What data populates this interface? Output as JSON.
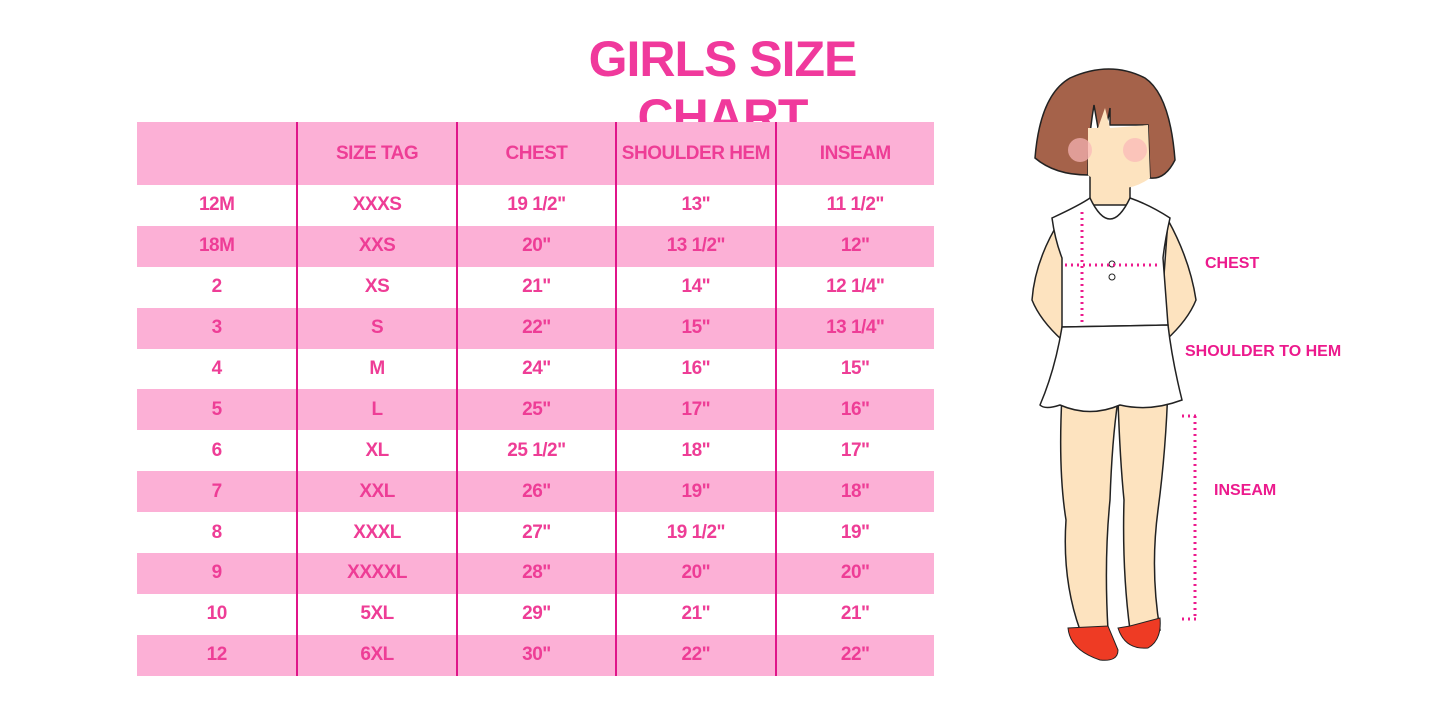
{
  "title": "GIRLS SIZE CHART",
  "table": {
    "headers": [
      "",
      "SIZE TAG",
      "CHEST",
      "SHOULDER HEM",
      "INSEAM"
    ],
    "rows": [
      [
        "12M",
        "XXXS",
        "19 1/2\"",
        "13\"",
        "11 1/2\""
      ],
      [
        "18M",
        "XXS",
        "20\"",
        "13 1/2\"",
        "12\""
      ],
      [
        "2",
        "XS",
        "21\"",
        "14\"",
        "12 1/4\""
      ],
      [
        "3",
        "S",
        "22\"",
        "15\"",
        "13 1/4\""
      ],
      [
        "4",
        "M",
        "24\"",
        "16\"",
        "15\""
      ],
      [
        "5",
        "L",
        "25\"",
        "17\"",
        "16\""
      ],
      [
        "6",
        "XL",
        "25 1/2\"",
        "18\"",
        "17\""
      ],
      [
        "7",
        "XXL",
        "26\"",
        "19\"",
        "18\""
      ],
      [
        "8",
        "XXXL",
        "27\"",
        "19 1/2\"",
        "19\""
      ],
      [
        "9",
        "XXXXL",
        "28\"",
        "20\"",
        "20\""
      ],
      [
        "10",
        "5XL",
        "29\"",
        "21\"",
        "21\""
      ],
      [
        "12",
        "6XL",
        "30\"",
        "22\"",
        "22\""
      ]
    ]
  },
  "diagram": {
    "labels": {
      "chest": "CHEST",
      "shoulder_to_hem": "SHOULDER TO HEM",
      "inseam": "INSEAM"
    }
  },
  "colors": {
    "accent": "#ee3d96",
    "row_pink": "#fcb0d6",
    "divider": "#e0158a",
    "measure": "#ec1a8d"
  }
}
